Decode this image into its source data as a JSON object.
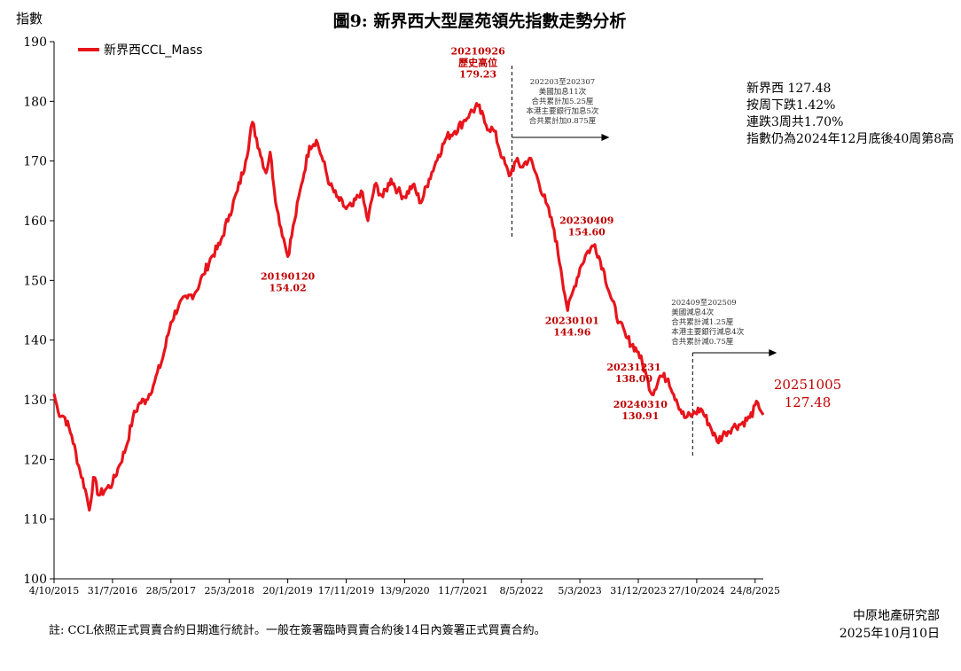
{
  "header": {
    "title": "圖9: 新界西大型屋苑領先指數走勢分析",
    "y_unit_label": "指數"
  },
  "legend": {
    "series_name": "新界西CCL_Mass",
    "position": "top-left"
  },
  "info_box": {
    "lines": [
      "新界西 127.48",
      "按周下跌1.42%",
      "連跌3周共1.70%",
      "指數仍為2024年12月底後40周第8高"
    ]
  },
  "footnote": "註: CCL依照正式買賣合約日期進行統計。一般在簽署臨時買賣合約後14日內簽署正式買賣合約。",
  "source": {
    "org": "中原地產研究部",
    "date": "2025年10月10日"
  },
  "colors": {
    "series": "#e8141c",
    "label_red": "#c00000",
    "axis": "#000000"
  },
  "chart_data": {
    "type": "line",
    "title": "圖9: 新界西大型屋苑領先指數走勢分析",
    "ylabel": "指數",
    "xlabel": "",
    "ylim": [
      100,
      190
    ],
    "yticks": [
      100,
      110,
      120,
      130,
      140,
      150,
      160,
      170,
      180,
      190
    ],
    "xlim": [
      "2015-10-04",
      "2025-10-05"
    ],
    "xticks": [
      "4/10/2015",
      "31/7/2016",
      "28/5/2017",
      "25/3/2018",
      "20/1/2019",
      "17/11/2019",
      "13/9/2020",
      "11/7/2021",
      "8/5/2022",
      "5/3/2023",
      "31/12/2023",
      "27/10/2024",
      "24/8/2025"
    ],
    "grid": false,
    "legend": "top-left",
    "series": [
      {
        "name": "新界西CCL_Mass",
        "points": [
          [
            "2015-10-04",
            131.0
          ],
          [
            "2015-10-25",
            128.0
          ],
          [
            "2015-11-29",
            127.0
          ],
          [
            "2016-01-03",
            124.0
          ],
          [
            "2016-02-07",
            119.0
          ],
          [
            "2016-03-13",
            115.0
          ],
          [
            "2016-04-03",
            111.5
          ],
          [
            "2016-04-24",
            117.0
          ],
          [
            "2016-05-22",
            114.0
          ],
          [
            "2016-06-26",
            115.0
          ],
          [
            "2016-07-31",
            116.0
          ],
          [
            "2016-09-04",
            119.0
          ],
          [
            "2016-10-09",
            122.0
          ],
          [
            "2016-11-13",
            127.0
          ],
          [
            "2016-12-18",
            129.5
          ],
          [
            "2017-01-22",
            130.0
          ],
          [
            "2017-03-05",
            133.0
          ],
          [
            "2017-04-16",
            137.0
          ],
          [
            "2017-05-28",
            143.0
          ],
          [
            "2017-07-09",
            146.0
          ],
          [
            "2017-08-20",
            147.0
          ],
          [
            "2017-10-01",
            148.0
          ],
          [
            "2017-11-12",
            151.0
          ],
          [
            "2017-12-24",
            154.0
          ],
          [
            "2018-02-04",
            156.0
          ],
          [
            "2018-03-25",
            161.0
          ],
          [
            "2018-05-06",
            165.0
          ],
          [
            "2018-06-17",
            170.0
          ],
          [
            "2018-07-22",
            176.5
          ],
          [
            "2018-08-26",
            172.0
          ],
          [
            "2018-09-30",
            168.0
          ],
          [
            "2018-10-21",
            171.5
          ],
          [
            "2018-11-25",
            162.0
          ],
          [
            "2018-12-30",
            157.0
          ],
          [
            "2019-01-20",
            154.0
          ],
          [
            "2019-02-24",
            160.0
          ],
          [
            "2019-03-31",
            166.0
          ],
          [
            "2019-05-12",
            172.5
          ],
          [
            "2019-06-16",
            173.5
          ],
          [
            "2019-07-21",
            170.0
          ],
          [
            "2019-08-25",
            166.0
          ],
          [
            "2019-09-29",
            164.0
          ],
          [
            "2019-11-17",
            162.0
          ],
          [
            "2019-12-22",
            162.5
          ],
          [
            "2020-02-02",
            165.0
          ],
          [
            "2020-03-08",
            160.0
          ],
          [
            "2020-04-12",
            166.0
          ],
          [
            "2020-05-24",
            164.0
          ],
          [
            "2020-07-05",
            167.0
          ],
          [
            "2020-08-09",
            165.0
          ],
          [
            "2020-09-13",
            164.0
          ],
          [
            "2020-10-25",
            166.0
          ],
          [
            "2020-12-06",
            163.0
          ],
          [
            "2021-01-17",
            167.0
          ],
          [
            "2021-03-07",
            171.0
          ],
          [
            "2021-04-18",
            174.0
          ],
          [
            "2021-05-30",
            175.0
          ],
          [
            "2021-07-11",
            176.5
          ],
          [
            "2021-08-15",
            178.0
          ],
          [
            "2021-09-26",
            179.23
          ],
          [
            "2021-11-07",
            176.0
          ],
          [
            "2021-12-19",
            175.0
          ],
          [
            "2022-01-30",
            170.5
          ],
          [
            "2022-03-06",
            167.5
          ],
          [
            "2022-04-10",
            170.0
          ],
          [
            "2022-05-08",
            169.0
          ],
          [
            "2022-06-19",
            170.5
          ],
          [
            "2022-07-31",
            167.0
          ],
          [
            "2022-09-11",
            163.0
          ],
          [
            "2022-10-23",
            158.5
          ],
          [
            "2022-11-27",
            152.0
          ],
          [
            "2023-01-01",
            144.96
          ],
          [
            "2023-02-05",
            149.0
          ],
          [
            "2023-03-05",
            152.0
          ],
          [
            "2023-04-09",
            154.6
          ],
          [
            "2023-05-21",
            156.0
          ],
          [
            "2023-07-02",
            152.0
          ],
          [
            "2023-08-13",
            147.0
          ],
          [
            "2023-09-24",
            143.0
          ],
          [
            "2023-10-29",
            140.5
          ],
          [
            "2023-12-31",
            138.0
          ],
          [
            "2024-02-11",
            134.0
          ],
          [
            "2024-03-10",
            130.91
          ],
          [
            "2024-04-21",
            134.0
          ],
          [
            "2024-06-02",
            133.5
          ],
          [
            "2024-07-14",
            130.0
          ],
          [
            "2024-08-25",
            127.0
          ],
          [
            "2024-10-06",
            127.5
          ],
          [
            "2024-11-17",
            128.5
          ],
          [
            "2024-12-29",
            126.0
          ],
          [
            "2025-02-09",
            123.0
          ],
          [
            "2025-03-23",
            124.5
          ],
          [
            "2025-05-04",
            125.5
          ],
          [
            "2025-06-15",
            126.0
          ],
          [
            "2025-07-27",
            127.0
          ],
          [
            "2025-09-07",
            129.5
          ],
          [
            "2025-10-05",
            127.48
          ]
        ]
      }
    ],
    "annotations": [
      {
        "date": "2019-01-20",
        "value": 154.02,
        "lines": [
          "20190120",
          "154.02"
        ],
        "style": "red"
      },
      {
        "date": "2021-09-26",
        "value": 179.23,
        "lines": [
          "20210926",
          "歷史高位",
          "179.23"
        ],
        "style": "red"
      },
      {
        "date": "2023-04-09",
        "value": 154.6,
        "lines": [
          "20230409",
          "154.60"
        ],
        "style": "red"
      },
      {
        "date": "2023-01-01",
        "value": 144.96,
        "lines": [
          "20230101",
          "144.96"
        ],
        "style": "red"
      },
      {
        "date": "2023-12-31",
        "value": 138.0,
        "lines": [
          "20231231",
          "138.00"
        ],
        "style": "red"
      },
      {
        "date": "2024-03-10",
        "value": 130.91,
        "lines": [
          "20240310",
          "130.91"
        ],
        "style": "red"
      },
      {
        "date": "2025-10-05",
        "value": 127.48,
        "lines": [
          "20251005",
          "127.48"
        ],
        "style": "red-large"
      }
    ],
    "reference_lines": [
      {
        "date": "2022-03-20",
        "lines": [
          "202203至202307",
          "美國加息11次",
          "合共累計加5.25厘",
          "本港主要銀行加息5次",
          "合共累計加0.875厘"
        ]
      },
      {
        "date": "2024-10-06",
        "lines": [
          "202409至202509",
          "美國減息4次",
          "合共累計減1.25厘",
          "本港主要銀行減息4次",
          "合共累計減0.75厘"
        ]
      }
    ]
  }
}
